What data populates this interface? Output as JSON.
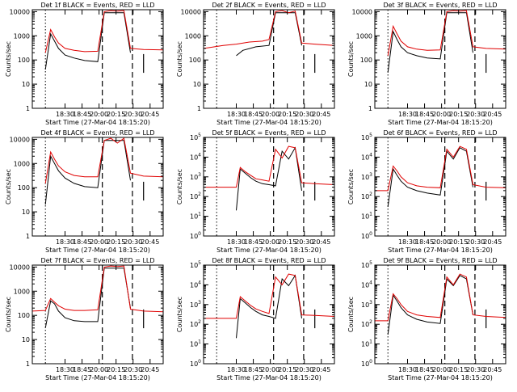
{
  "chart_data": [
    {
      "type": "line",
      "title": "Det 1f BLACK = Events, RED = LLD",
      "xlabel": "Start Time (27-Mar-04 18:15:20)",
      "ylabel": "Counts/sec",
      "ylog": true,
      "ylim": [
        1,
        12000
      ],
      "ytick_style": "plain",
      "x_ticks": [
        "18:30",
        "18:45",
        "20:00",
        "20:15",
        "20:30",
        "20:45"
      ],
      "series": [
        {
          "name": "Events",
          "color": "#000000",
          "x": [
            0.1,
            0.14,
            0.17,
            0.2,
            0.25,
            0.32,
            0.4,
            0.5,
            0.55,
            0.6,
            0.7,
            0.75
          ],
          "values": [
            40,
            1200,
            600,
            300,
            160,
            120,
            95,
            85,
            9000,
            9000,
            9000,
            200
          ]
        },
        {
          "name": "LLD",
          "color": "#e00000",
          "x": [
            0.1,
            0.14,
            0.17,
            0.2,
            0.25,
            0.32,
            0.4,
            0.5,
            0.55,
            0.6,
            0.65,
            0.7,
            0.75,
            0.85,
            1.0
          ],
          "values": [
            200,
            1800,
            900,
            500,
            300,
            250,
            220,
            230,
            10000,
            11000,
            10500,
            11000,
            300,
            270,
            260
          ]
        }
      ]
    },
    {
      "type": "line",
      "title": "Det 2f BLACK = Events, RED = LLD",
      "xlabel": "Start Time (27-Mar-04 18:15:20)",
      "ylabel": "Counts/sec",
      "ylog": true,
      "ylim": [
        1,
        12000
      ],
      "ytick_style": "plain",
      "x_ticks": [
        "18:30",
        "18:45",
        "20:00",
        "20:15",
        "20:30",
        "20:45"
      ],
      "series": [
        {
          "name": "Events",
          "color": "#000000",
          "x": [
            0.25,
            0.3,
            0.4,
            0.5,
            0.55,
            0.6,
            0.7,
            0.75
          ],
          "values": [
            150,
            250,
            350,
            400,
            9000,
            9000,
            9000,
            400
          ]
        },
        {
          "name": "LLD",
          "color": "#e00000",
          "x": [
            0.0,
            0.15,
            0.25,
            0.35,
            0.45,
            0.5,
            0.55,
            0.6,
            0.65,
            0.7,
            0.75,
            0.85,
            1.0
          ],
          "values": [
            300,
            400,
            450,
            550,
            600,
            700,
            10000,
            11000,
            9000,
            10500,
            500,
            450,
            400
          ]
        }
      ]
    },
    {
      "type": "line",
      "title": "Det 3f BLACK = Events, RED = LLD",
      "xlabel": "Start Time (27-Mar-04 18:15:20)",
      "ylabel": "Counts/sec",
      "ylog": true,
      "ylim": [
        1,
        12000
      ],
      "ytick_style": "plain",
      "x_ticks": [
        "18:30",
        "18:45",
        "20:00",
        "20:15",
        "20:30",
        "20:45"
      ],
      "series": [
        {
          "name": "Events",
          "color": "#000000",
          "x": [
            0.1,
            0.14,
            0.17,
            0.2,
            0.25,
            0.32,
            0.4,
            0.5,
            0.55,
            0.6,
            0.7,
            0.75
          ],
          "values": [
            30,
            1500,
            700,
            350,
            200,
            150,
            120,
            110,
            9000,
            9000,
            9000,
            200
          ]
        },
        {
          "name": "LLD",
          "color": "#e00000",
          "x": [
            0.1,
            0.14,
            0.17,
            0.2,
            0.25,
            0.32,
            0.4,
            0.5,
            0.55,
            0.6,
            0.65,
            0.7,
            0.75,
            0.85,
            1.0
          ],
          "values": [
            150,
            2500,
            1200,
            600,
            350,
            280,
            250,
            260,
            10000,
            11000,
            10500,
            11000,
            350,
            300,
            280
          ]
        }
      ]
    },
    {
      "type": "line",
      "title": "Det 4f BLACK = Events, RED = LLD",
      "xlabel": "Start Time (27-Mar-04 18:15:20)",
      "ylabel": "Counts/sec",
      "ylog": true,
      "ylim": [
        1,
        12000
      ],
      "ytick_style": "plain",
      "x_ticks": [
        "18:30",
        "18:45",
        "20:00",
        "20:15",
        "20:30",
        "20:45"
      ],
      "series": [
        {
          "name": "Events",
          "color": "#000000",
          "x": [
            0.1,
            0.14,
            0.17,
            0.2,
            0.25,
            0.32,
            0.4,
            0.5,
            0.55,
            0.6,
            0.7,
            0.75
          ],
          "values": [
            20,
            2000,
            1000,
            500,
            250,
            150,
            110,
            100,
            9000,
            9000,
            9000,
            200
          ]
        },
        {
          "name": "LLD",
          "color": "#e00000",
          "x": [
            0.1,
            0.14,
            0.17,
            0.2,
            0.25,
            0.32,
            0.4,
            0.5,
            0.55,
            0.6,
            0.65,
            0.7,
            0.75,
            0.85,
            1.0
          ],
          "values": [
            150,
            3000,
            1500,
            800,
            450,
            320,
            280,
            280,
            9000,
            11000,
            7000,
            11000,
            400,
            300,
            280
          ]
        }
      ]
    },
    {
      "type": "line",
      "title": "Det 5f BLACK = Events, RED = LLD",
      "xlabel": "Start Time (27-Mar-04 18:15:20)",
      "ylabel": "Counts/sec",
      "ylog": true,
      "ylim": [
        1,
        100000
      ],
      "ytick_style": "power",
      "x_ticks": [
        "18:30",
        "18:45",
        "20:00",
        "20:15",
        "20:30",
        "20:45"
      ],
      "series": [
        {
          "name": "Events",
          "color": "#000000",
          "x": [
            0.25,
            0.28,
            0.32,
            0.36,
            0.4,
            0.45,
            0.5,
            0.55,
            0.6,
            0.65,
            0.7,
            0.75
          ],
          "values": [
            20,
            2500,
            1500,
            900,
            600,
            450,
            400,
            350,
            20000,
            8000,
            30000,
            200
          ]
        },
        {
          "name": "LLD",
          "color": "#e00000",
          "x": [
            0.0,
            0.25,
            0.28,
            0.32,
            0.36,
            0.4,
            0.45,
            0.5,
            0.55,
            0.6,
            0.65,
            0.7,
            0.75,
            0.85,
            1.0
          ],
          "values": [
            300,
            300,
            3000,
            1800,
            1200,
            800,
            700,
            600,
            25000,
            9000,
            35000,
            30000,
            500,
            450,
            400
          ]
        }
      ]
    },
    {
      "type": "line",
      "title": "Det 6f BLACK = Events, RED = LLD",
      "xlabel": "Start Time (27-Mar-04 18:15:20)",
      "ylabel": "Counts/sec",
      "ylog": true,
      "ylim": [
        1,
        100000
      ],
      "ytick_style": "power",
      "x_ticks": [
        "18:30",
        "18:45",
        "20:00",
        "20:15",
        "20:30",
        "20:45"
      ],
      "series": [
        {
          "name": "Events",
          "color": "#000000",
          "x": [
            0.1,
            0.14,
            0.17,
            0.2,
            0.25,
            0.32,
            0.4,
            0.5,
            0.55,
            0.6,
            0.65,
            0.7,
            0.75
          ],
          "values": [
            30,
            2500,
            1200,
            600,
            300,
            200,
            150,
            120,
            20000,
            8000,
            30000,
            20000,
            300
          ]
        },
        {
          "name": "LLD",
          "color": "#e00000",
          "x": [
            0.0,
            0.1,
            0.14,
            0.17,
            0.2,
            0.25,
            0.32,
            0.4,
            0.5,
            0.55,
            0.6,
            0.65,
            0.7,
            0.75,
            0.85,
            1.0
          ],
          "values": [
            200,
            200,
            3500,
            2000,
            1000,
            500,
            350,
            300,
            280,
            25000,
            10000,
            35000,
            25000,
            400,
            300,
            280
          ]
        }
      ]
    },
    {
      "type": "line",
      "title": "Det 7f BLACK = Events, RED = LLD",
      "xlabel": "Start Time (27-Mar-04 18:15:20)",
      "ylabel": "Counts/sec",
      "ylog": true,
      "ylim": [
        1,
        12000
      ],
      "ytick_style": "plain",
      "x_ticks": [
        "18:30",
        "18:45",
        "20:00",
        "20:15",
        "20:30",
        "20:45"
      ],
      "series": [
        {
          "name": "Events",
          "color": "#000000",
          "x": [
            0.1,
            0.14,
            0.17,
            0.2,
            0.25,
            0.32,
            0.4,
            0.5,
            0.55,
            0.6,
            0.7,
            0.75
          ],
          "values": [
            30,
            400,
            300,
            150,
            80,
            60,
            55,
            55,
            9000,
            9000,
            9000,
            200
          ]
        },
        {
          "name": "LLD",
          "color": "#e00000",
          "x": [
            0.0,
            0.1,
            0.14,
            0.17,
            0.2,
            0.25,
            0.32,
            0.4,
            0.5,
            0.55,
            0.6,
            0.65,
            0.7,
            0.75,
            0.85,
            1.0
          ],
          "values": [
            150,
            160,
            500,
            350,
            250,
            180,
            160,
            160,
            170,
            10000,
            11000,
            10500,
            11000,
            180,
            150,
            140
          ]
        }
      ]
    },
    {
      "type": "line",
      "title": "Det 8f BLACK = Events, RED = LLD",
      "xlabel": "Start Time (27-Mar-04 18:15:20)",
      "ylabel": "Counts/sec",
      "ylog": true,
      "ylim": [
        1,
        100000
      ],
      "ytick_style": "power",
      "x_ticks": [
        "18:30",
        "18:45",
        "20:00",
        "20:15",
        "20:30",
        "20:45"
      ],
      "series": [
        {
          "name": "Events",
          "color": "#000000",
          "x": [
            0.25,
            0.28,
            0.32,
            0.36,
            0.4,
            0.45,
            0.5,
            0.55,
            0.6,
            0.65,
            0.7,
            0.75
          ],
          "values": [
            20,
            2000,
            1200,
            700,
            450,
            300,
            250,
            200,
            20000,
            9000,
            30000,
            200
          ]
        },
        {
          "name": "LLD",
          "color": "#e00000",
          "x": [
            0.0,
            0.25,
            0.28,
            0.32,
            0.36,
            0.4,
            0.45,
            0.5,
            0.55,
            0.6,
            0.65,
            0.7,
            0.75,
            0.85,
            1.0
          ],
          "values": [
            200,
            200,
            2500,
            1500,
            900,
            600,
            450,
            350,
            25000,
            10000,
            35000,
            30000,
            300,
            280,
            250
          ]
        }
      ]
    },
    {
      "type": "line",
      "title": "Det 9f BLACK = Events, RED = LLD",
      "xlabel": "Start Time (27-Mar-04 18:15:20)",
      "ylabel": "Counts/sec",
      "ylog": true,
      "ylim": [
        1,
        100000
      ],
      "ytick_style": "power",
      "x_ticks": [
        "18:30",
        "18:45",
        "20:00",
        "20:15",
        "20:30",
        "20:45"
      ],
      "series": [
        {
          "name": "Events",
          "color": "#000000",
          "x": [
            0.1,
            0.14,
            0.17,
            0.2,
            0.25,
            0.32,
            0.4,
            0.5,
            0.55,
            0.6,
            0.65,
            0.7,
            0.75
          ],
          "values": [
            30,
            3000,
            1500,
            700,
            300,
            180,
            130,
            110,
            20000,
            9000,
            30000,
            20000,
            300
          ]
        },
        {
          "name": "LLD",
          "color": "#e00000",
          "x": [
            0.0,
            0.1,
            0.14,
            0.17,
            0.2,
            0.25,
            0.32,
            0.4,
            0.5,
            0.55,
            0.6,
            0.65,
            0.7,
            0.75,
            0.85,
            1.0
          ],
          "values": [
            150,
            150,
            3500,
            2000,
            1000,
            450,
            300,
            250,
            220,
            25000,
            10000,
            35000,
            25000,
            300,
            250,
            220
          ]
        }
      ]
    }
  ]
}
